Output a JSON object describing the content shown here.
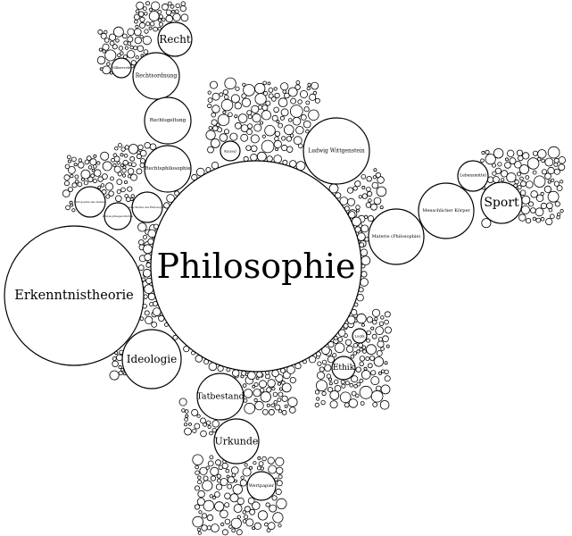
{
  "diagram": {
    "type": "circle-packing-word-cloud",
    "colors": {
      "stroke": "#000000",
      "fill": "#ffffff"
    },
    "nodes": [
      {
        "id": "philosophie",
        "label": "Philosophie"
      },
      {
        "id": "erkenntnistheorie",
        "label": "Erkenntnistheorie"
      },
      {
        "id": "ideologie",
        "label": "Ideologie"
      },
      {
        "id": "tatbestand",
        "label": "Tatbestand"
      },
      {
        "id": "urkunde",
        "label": "Urkunde"
      },
      {
        "id": "wertpapier",
        "label": "Wertpapier"
      },
      {
        "id": "ethik",
        "label": "Ethik"
      },
      {
        "id": "logik",
        "label": "Logik"
      },
      {
        "id": "materie",
        "label": "Materie (Philosophie)"
      },
      {
        "id": "menschlicher-koerper",
        "label": "Menschlicher Körper"
      },
      {
        "id": "sport",
        "label": "Sport"
      },
      {
        "id": "lebensmittel",
        "label": "Lebensmittel"
      },
      {
        "id": "ludwig-wittgenstein",
        "label": "Ludwig Wittgenstein"
      },
      {
        "id": "kausal",
        "label": "Kausal"
      },
      {
        "id": "recht",
        "label": "Recht"
      },
      {
        "id": "rechtsordnung",
        "label": "Rechtsordnung"
      },
      {
        "id": "rechtsgeltung",
        "label": "Rechtsgeltung"
      },
      {
        "id": "rechtsphilosophie",
        "label": "Rechtsphilosophie"
      },
      {
        "id": "voelkerrecht",
        "label": "Völkerrecht"
      },
      {
        "id": "philosophie-des-geistes",
        "label": "Philosophie des Geistes"
      },
      {
        "id": "philosophiegeschichte",
        "label": "Philosophiegeschichte"
      },
      {
        "id": "geschichte-der-philosophie",
        "label": "Geschichte der Philosophie"
      }
    ]
  }
}
